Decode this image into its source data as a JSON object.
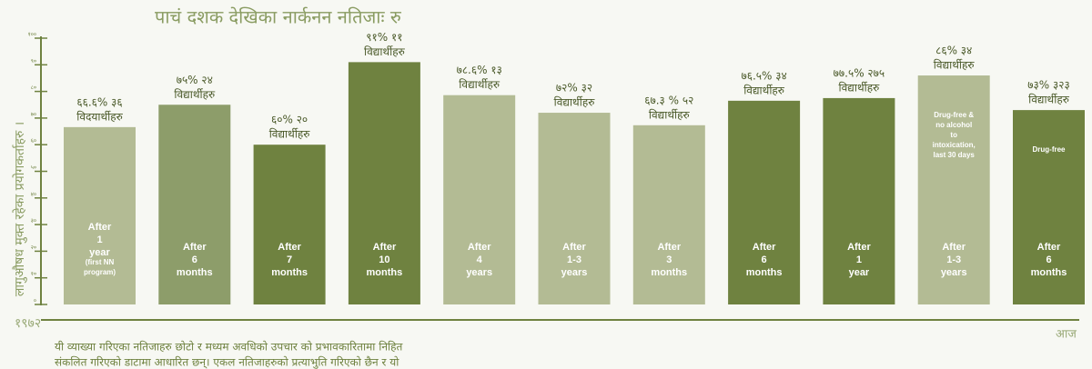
{
  "chart_data": {
    "type": "bar",
    "title": "पाचं दशक देखिका नार्कनन नतिजाः रु",
    "y_label": "लागुऔषध मुक्त रहेका प्रयोगकर्ताहरु ।",
    "x_start": "१९७२",
    "x_end": "आज",
    "footnote": [
      "यी व्याख्या गरिएका नतिजाहरु छोटो र मध्यम अवधिको उपचार को प्रभावकारितामा निहित",
      "संकलित गरिएको डाटामा आधारित छन्। एकल नतिजाहरुको प्रत्याभुति गरिएको छैन र यो"
    ],
    "categories": [
      [
        "After",
        "1",
        "year",
        "(first NN",
        "program)"
      ],
      [
        "After",
        "6",
        "months"
      ],
      [
        "After",
        "7",
        "months"
      ],
      [
        "After",
        "10",
        "months"
      ],
      [
        "After",
        "4",
        "years"
      ],
      [
        "After",
        "1-3",
        "years"
      ],
      [
        "After",
        "3",
        "months"
      ],
      [
        "After",
        "6",
        "months"
      ],
      [
        "After",
        "1",
        "year"
      ],
      [
        "After",
        "1-3",
        "years"
      ],
      [
        "After",
        "6",
        "months"
      ]
    ],
    "values": [
      66.6,
      75,
      60,
      91,
      78.6,
      72,
      67.3,
      76.5,
      77.5,
      86,
      73
    ],
    "value_labels": [
      "६६.६% ३६",
      "७५% २४",
      "६०% २०",
      "९१% ११",
      "७८.६% १३",
      "७२% ३२",
      "६७.३ % ५२",
      "७६.५% ३४",
      "७७.५% २७५",
      "८६% ३४",
      "७३% ३२३"
    ],
    "unit_labels": [
      "विदयार्थीहरु",
      "विद्यार्थीहरु",
      "विद्यार्थीहरु",
      "विद्यार्थीहरु",
      "विद्यार्थीहरु",
      "विद्यार्थीहरु",
      "विद्यार्थीहरु",
      "विद्यार्थीहरु",
      "विद्यार्थीहरु",
      "विद्यार्थीहरु",
      "विद्यार्थीहरु"
    ],
    "bar_notes": [
      null,
      null,
      null,
      null,
      null,
      null,
      null,
      null,
      null,
      [
        "Drug-free &",
        "no alcohol",
        "to",
        "intoxication,",
        "last 30 days"
      ],
      [
        "Drug-free"
      ]
    ],
    "colors": [
      "#b3bb94",
      "#8d9d6a",
      "#6f8240",
      "#6f8240",
      "#b3bb94",
      "#b3bb94",
      "#b3bb94",
      "#6f8240",
      "#6f8240",
      "#b3bb94",
      "#6f8240"
    ],
    "ylim": [
      0,
      100
    ],
    "yticks": [
      {
        "value": 0,
        "label": "०"
      },
      {
        "value": 10,
        "label": "१०"
      },
      {
        "value": 20,
        "label": "२०"
      },
      {
        "value": 30,
        "label": "३०"
      },
      {
        "value": 40,
        "label": "४०"
      },
      {
        "value": 50,
        "label": "५०"
      },
      {
        "value": 60,
        "label": "६०"
      },
      {
        "value": 70,
        "label": "७०"
      },
      {
        "value": 80,
        "label": "८०"
      },
      {
        "value": 90,
        "label": "९०"
      },
      {
        "value": 100,
        "label": "१००"
      }
    ]
  }
}
